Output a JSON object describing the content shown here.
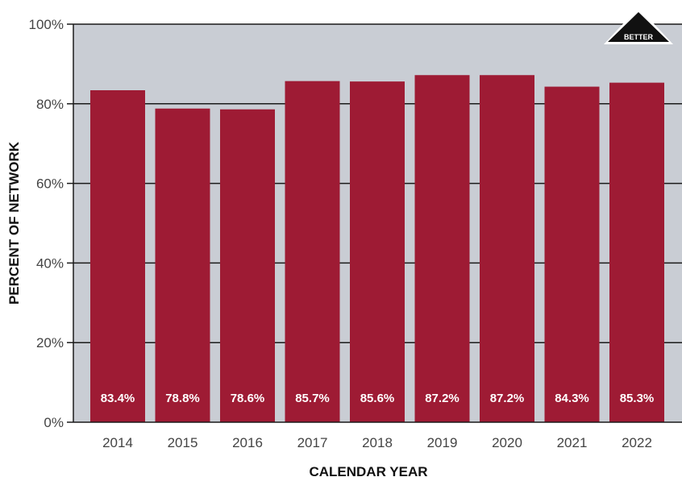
{
  "chart_data": {
    "type": "bar",
    "categories": [
      "2014",
      "2015",
      "2016",
      "2017",
      "2018",
      "2019",
      "2020",
      "2021",
      "2022"
    ],
    "values": [
      83.4,
      78.8,
      78.6,
      85.7,
      85.6,
      87.2,
      87.2,
      84.3,
      85.3
    ],
    "data_labels": [
      "83.4%",
      "78.8%",
      "78.6%",
      "85.7%",
      "85.6%",
      "87.2%",
      "87.2%",
      "84.3%",
      "85.3%"
    ],
    "xlabel": "CALENDAR YEAR",
    "ylabel": "PERCENT OF NETWORK",
    "ylim": [
      0,
      100
    ],
    "yticks": [
      0,
      20,
      40,
      60,
      80,
      100
    ],
    "ytick_labels": [
      "0%",
      "20%",
      "40%",
      "60%",
      "80%",
      "100%"
    ],
    "grid": true,
    "badge": "BETTER",
    "colors": {
      "bar": "#9e1b34",
      "plot_background": "#c9cdd4",
      "gridline": "#1a1a1a"
    }
  }
}
